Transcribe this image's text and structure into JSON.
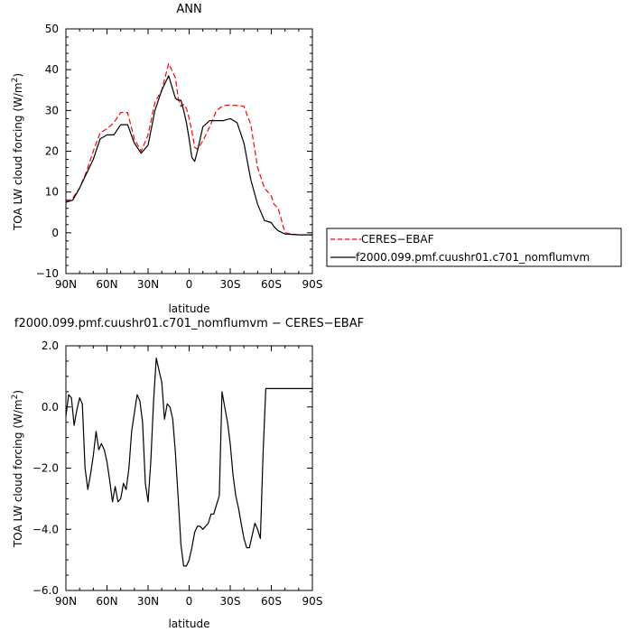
{
  "chart_data": [
    {
      "type": "line",
      "title": "ANN",
      "xlabel": "latitude",
      "ylabel_prefix": "TOA LW cloud forcing (W/m",
      "ylabel_sup": "2",
      "ylabel_suffix": ")",
      "xlim": [
        -90,
        90
      ],
      "ylim": [
        -10,
        50
      ],
      "xticks": [
        -90,
        -60,
        -30,
        0,
        30,
        60,
        90
      ],
      "xtick_labels": [
        "90N",
        "60N",
        "30N",
        "0",
        "30S",
        "60S",
        "90S"
      ],
      "yticks": [
        -10,
        0,
        10,
        20,
        30,
        40,
        50
      ],
      "ytick_labels": [
        "−10",
        "0",
        "10",
        "20",
        "30",
        "40",
        "50"
      ],
      "legend": "right",
      "series": [
        {
          "name": "CERES−EBAF",
          "color": "#ff0000",
          "dash": "dashed",
          "x": [
            -90,
            -85,
            -80,
            -75,
            -70,
            -65,
            -60,
            -55,
            -50,
            -45,
            -40,
            -35,
            -30,
            -25,
            -20,
            -15,
            -10,
            -8,
            -6,
            -4,
            -2,
            0,
            2,
            4,
            6,
            10,
            15,
            20,
            25,
            30,
            35,
            40,
            45,
            50,
            55,
            60,
            62,
            65,
            70,
            75,
            80,
            85,
            87,
            90
          ],
          "y": [
            7.5,
            8.5,
            11,
            15,
            20,
            24.5,
            25.5,
            27,
            29.5,
            29.5,
            23,
            20,
            24,
            32,
            35,
            41.5,
            38,
            33,
            31,
            31.5,
            30.5,
            28,
            25,
            21,
            20.5,
            22.5,
            26,
            30,
            31.2,
            31.3,
            31.2,
            31,
            26.5,
            16,
            11,
            9,
            7,
            6,
            0,
            -0.3,
            -0.5,
            -0.5,
            -0.5,
            -0.5
          ]
        },
        {
          "name": "f2000.099.pmf.cuushr01.c701_nomflumvm",
          "color": "#000000",
          "dash": "solid",
          "x": [
            -90,
            -85,
            -80,
            -75,
            -70,
            -65,
            -60,
            -55,
            -50,
            -45,
            -40,
            -35,
            -30,
            -25,
            -20,
            -15,
            -10,
            -8,
            -6,
            -4,
            -2,
            0,
            2,
            4,
            6,
            10,
            15,
            20,
            25,
            30,
            35,
            40,
            45,
            50,
            55,
            60,
            62,
            65,
            70,
            75,
            80,
            85,
            87,
            90
          ],
          "y": [
            7.5,
            8,
            11,
            14.5,
            18,
            23,
            24,
            24,
            26.5,
            26.5,
            22,
            19.5,
            21.5,
            30,
            35,
            38.5,
            33,
            32.5,
            32.5,
            30,
            27,
            23,
            18.5,
            17.5,
            20,
            26,
            27.5,
            27.5,
            27.5,
            28,
            27,
            22,
            13,
            7,
            3,
            2.5,
            1.5,
            0.5,
            -0.3,
            -0.4,
            -0.5,
            -0.5,
            -0.5,
            -0.5
          ]
        }
      ]
    },
    {
      "type": "line",
      "title": "f2000.099.pmf.cuushr01.c701_nomflumvm − CERES−EBAF",
      "xlabel": "latitude",
      "ylabel_prefix": "TOA LW cloud forcing (W/m",
      "ylabel_sup": "2",
      "ylabel_suffix": ")",
      "xlim": [
        -90,
        90
      ],
      "ylim": [
        -6,
        2
      ],
      "xticks": [
        -90,
        -60,
        -30,
        0,
        30,
        60,
        90
      ],
      "xtick_labels": [
        "90N",
        "60N",
        "30N",
        "0",
        "30S",
        "60S",
        "90S"
      ],
      "yticks": [
        -6,
        -4,
        -2,
        0,
        2
      ],
      "ytick_labels": [
        "−6.0",
        "−4.0",
        "−2.0",
        "0.0",
        "2.0"
      ],
      "series": [
        {
          "name": "",
          "color": "#000000",
          "dash": "solid",
          "x": [
            -90,
            -88,
            -86,
            -84,
            -82,
            -80,
            -78,
            -76,
            -74,
            -72,
            -70,
            -68,
            -66,
            -64,
            -62,
            -60,
            -58,
            -56,
            -54,
            -52,
            -50,
            -48,
            -46,
            -44,
            -42,
            -40,
            -38,
            -36,
            -34,
            -32,
            -30,
            -28,
            -26,
            -24,
            -22,
            -20,
            -18,
            -16,
            -14,
            -12,
            -10,
            -8,
            -6,
            -4,
            -2,
            0,
            2,
            4,
            6,
            8,
            10,
            12,
            14,
            16,
            18,
            20,
            22,
            24,
            26,
            28,
            30,
            32,
            34,
            36,
            38,
            40,
            42,
            44,
            46,
            48,
            50,
            52,
            54,
            56,
            58,
            60,
            62,
            64,
            66,
            68,
            70,
            72,
            74,
            76,
            78,
            80,
            82,
            84,
            86,
            88,
            90
          ],
          "y": [
            -0.3,
            0.4,
            0.3,
            -0.6,
            -0.1,
            0.3,
            0.1,
            -2,
            -2.7,
            -2.2,
            -1.6,
            -0.8,
            -1.4,
            -1.2,
            -1.4,
            -1.8,
            -2.4,
            -3.1,
            -2.6,
            -3.1,
            -3,
            -2.5,
            -2.7,
            -2,
            -0.8,
            -0.2,
            0.4,
            0.2,
            -0.5,
            -2.5,
            -3.1,
            -1.8,
            0.2,
            1.6,
            1.2,
            0.8,
            -0.4,
            0.1,
            0,
            -0.4,
            -1.5,
            -3,
            -4.5,
            -5.2,
            -5.2,
            -5,
            -4.6,
            -4.1,
            -3.9,
            -3.9,
            -4.0,
            -3.9,
            -3.8,
            -3.5,
            -3.5,
            -3.2,
            -2.9,
            0.5,
            0,
            -0.5,
            -1.2,
            -2.2,
            -2.9,
            -3.3,
            -3.8,
            -4.3,
            -4.6,
            -4.6,
            -4.2,
            -3.8,
            -4.0,
            -4.3,
            -1.5,
            0.6,
            0.6,
            0.6,
            0.6,
            0.6,
            0.6,
            0.6,
            0.6,
            0.6,
            0.6,
            0.6,
            0.6,
            0.6,
            0.6,
            0.6,
            0.6,
            0.6,
            0.6
          ]
        }
      ]
    }
  ]
}
